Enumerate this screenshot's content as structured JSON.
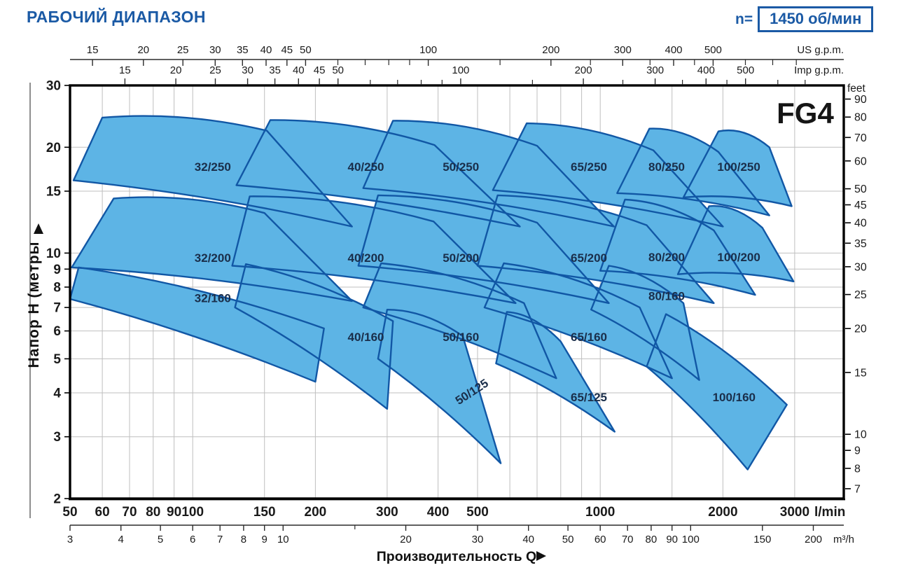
{
  "title": "РАБОЧИЙ ДИАПАЗОН",
  "speed": {
    "prefix": "n=",
    "value": "1450 об/мин"
  },
  "colors": {
    "accent": "#1b5aa5",
    "region_fill": "#5db4e5",
    "region_stroke": "#1157a5",
    "region_label": "#1a2e4a",
    "grid": "#bfbfbf",
    "axis": "#2b2b2b",
    "text": "#1a1a1a",
    "border": "#000000"
  },
  "chart_data": {
    "type": "area",
    "title": "РАБОЧИЙ ДИАПАЗОН",
    "model": "FG4",
    "speed_rpm": 1450,
    "x_title": "Производительность Q",
    "axis_ranges": {
      "q_lmin": [
        50,
        3960
      ],
      "h_m": [
        2,
        30
      ]
    },
    "grid": {
      "x_lmin": [
        60,
        70,
        80,
        90,
        100,
        150,
        200,
        300,
        400,
        500,
        600,
        700,
        800,
        900,
        1000,
        1500,
        2000,
        3000
      ],
      "y_m": [
        3,
        4,
        5,
        6,
        7,
        8,
        9,
        10,
        15,
        20
      ]
    },
    "x_axes": {
      "lmin": {
        "unit": "l/min",
        "ticks": [
          50,
          60,
          70,
          80,
          90,
          100,
          150,
          200,
          300,
          400,
          500,
          1000,
          2000,
          3000
        ]
      },
      "m3h": {
        "unit": "m³/h",
        "lmin_per_unit": 16.6667,
        "minor": [
          15
        ],
        "ticks": [
          3,
          4,
          5,
          6,
          7,
          8,
          9,
          10,
          20,
          30,
          40,
          50,
          60,
          70,
          80,
          90,
          100,
          150,
          200
        ]
      },
      "us_gpm": {
        "unit": "US g.p.m.",
        "lmin_per_unit": 3.785,
        "ticks": [
          15,
          20,
          25,
          30,
          35,
          40,
          45,
          50,
          100,
          200,
          300,
          400,
          500
        ],
        "minor": [
          60,
          70,
          80,
          90,
          150,
          250,
          350,
          450,
          600,
          700,
          800
        ]
      },
      "imp_gpm": {
        "unit": "Imp g.p.m.",
        "lmin_per_unit": 4.546,
        "ticks": [
          15,
          20,
          25,
          30,
          35,
          40,
          45,
          50,
          100,
          200,
          300,
          400,
          500
        ],
        "minor": [
          60,
          70,
          80,
          90,
          150,
          250,
          350,
          450,
          600,
          700
        ]
      }
    },
    "y_axes": {
      "meters": {
        "title": "Напор H (метры",
        "ticks": [
          2,
          3,
          4,
          5,
          6,
          7,
          8,
          9,
          10,
          15,
          20,
          30
        ]
      },
      "feet": {
        "unit": "feet",
        "m_per_unit": 0.3048,
        "ticks": [
          7,
          8,
          9,
          10,
          15,
          20,
          25,
          30,
          35,
          40,
          45,
          50,
          60,
          70,
          80,
          90
        ]
      }
    },
    "regions": [
      {
        "name": "32/250",
        "poly": [
          [
            60,
            24.3
          ],
          [
            152,
            22.3
          ],
          [
            246,
            11.9
          ],
          [
            51,
            16.1
          ]
        ],
        "label_at": [
          112,
          17.6
        ]
      },
      {
        "name": "32/200",
        "poly": [
          [
            64,
            14.3
          ],
          [
            150,
            13.0
          ],
          [
            246,
            7.3
          ],
          [
            50.5,
            9.1
          ]
        ],
        "label_at": [
          112,
          9.7
        ]
      },
      {
        "name": "32/160",
        "poly": [
          [
            52.5,
            9.1
          ],
          [
            210,
            6.1
          ],
          [
            200,
            4.3
          ],
          [
            50,
            7.4
          ]
        ],
        "label_at": [
          112,
          7.45
        ]
      },
      {
        "name": "40/250",
        "poly": [
          [
            155,
            23.9
          ],
          [
            392,
            20.3
          ],
          [
            635,
            11.9
          ],
          [
            128,
            15.6
          ]
        ],
        "label_at": [
          266,
          17.6
        ]
      },
      {
        "name": "40/200",
        "poly": [
          [
            138,
            14.5
          ],
          [
            390,
            12.3
          ],
          [
            620,
            7.2
          ],
          [
            125,
            9.2
          ]
        ],
        "label_at": [
          266,
          9.7
        ]
      },
      {
        "name": "40/160",
        "poly": [
          [
            135,
            9.3
          ],
          [
            310,
            6.4
          ],
          [
            300,
            3.6
          ],
          [
            127,
            7.0
          ]
        ],
        "label_at": [
          266,
          5.77
        ]
      },
      {
        "name": "50/250",
        "poly": [
          [
            310,
            23.8
          ],
          [
            700,
            20.2
          ],
          [
            1080,
            11.9
          ],
          [
            262,
            15.3
          ]
        ],
        "label_at": [
          455,
          17.6
        ]
      },
      {
        "name": "50/200",
        "poly": [
          [
            285,
            14.6
          ],
          [
            700,
            12.2
          ],
          [
            1050,
            7.2
          ],
          [
            255,
            9.2
          ]
        ],
        "label_at": [
          455,
          9.7
        ]
      },
      {
        "name": "50/160",
        "poly": [
          [
            290,
            9.35
          ],
          [
            650,
            7.2
          ],
          [
            780,
            4.4
          ],
          [
            262,
            7.0
          ]
        ],
        "label_at": [
          455,
          5.77
        ]
      },
      {
        "name": "50/125",
        "poly": [
          [
            300,
            6.9
          ],
          [
            460,
            5.8
          ],
          [
            570,
            2.52
          ],
          [
            285,
            5.0
          ]
        ],
        "label_at": [
          490,
          4.05
        ],
        "label_rotation": -33
      },
      {
        "name": "65/250",
        "poly": [
          [
            660,
            23.4
          ],
          [
            1350,
            19.6
          ],
          [
            2000,
            11.9
          ],
          [
            545,
            15.1
          ]
        ],
        "label_at": [
          938,
          17.6
        ]
      },
      {
        "name": "65/200",
        "poly": [
          [
            560,
            14.6
          ],
          [
            1300,
            12.0
          ],
          [
            1900,
            7.2
          ],
          [
            500,
            9.2
          ]
        ],
        "label_at": [
          938,
          9.7
        ]
      },
      {
        "name": "65/160",
        "poly": [
          [
            580,
            9.35
          ],
          [
            1250,
            7.0
          ],
          [
            1500,
            4.4
          ],
          [
            520,
            7.0
          ]
        ],
        "label_at": [
          938,
          5.77
        ]
      },
      {
        "name": "65/125",
        "poly": [
          [
            590,
            6.8
          ],
          [
            800,
            5.6
          ],
          [
            1085,
            3.1
          ],
          [
            555,
            4.85
          ]
        ],
        "label_at": [
          938,
          3.89
        ]
      },
      {
        "name": "80/250",
        "poly": [
          [
            1320,
            22.6
          ],
          [
            1950,
            19.4
          ],
          [
            2600,
            12.8
          ],
          [
            1100,
            14.8
          ]
        ],
        "label_at": [
          1455,
          17.6
        ]
      },
      {
        "name": "80/200",
        "poly": [
          [
            1150,
            14.2
          ],
          [
            1900,
            11.6
          ],
          [
            2400,
            7.6
          ],
          [
            1000,
            8.9
          ]
        ],
        "label_at": [
          1455,
          9.74
        ]
      },
      {
        "name": "80/160",
        "poly": [
          [
            1050,
            9.2
          ],
          [
            1600,
            7.2
          ],
          [
            1750,
            4.35
          ],
          [
            950,
            6.9
          ]
        ],
        "label_at": [
          1455,
          7.55
        ]
      },
      {
        "name": "100/250",
        "poly": [
          [
            1950,
            22.2
          ],
          [
            2600,
            20.0
          ],
          [
            2950,
            13.6
          ],
          [
            1600,
            14.4
          ]
        ],
        "label_at": [
          2188,
          17.6
        ]
      },
      {
        "name": "100/200",
        "poly": [
          [
            1850,
            13.6
          ],
          [
            2500,
            11.8
          ],
          [
            2980,
            8.3
          ],
          [
            1550,
            8.7
          ]
        ],
        "label_at": [
          2188,
          9.74
        ]
      },
      {
        "name": "100/160",
        "poly": [
          [
            1450,
            6.7
          ],
          [
            2870,
            3.7
          ],
          [
            2300,
            2.42
          ],
          [
            1300,
            4.75
          ]
        ],
        "label_at": [
          2130,
          3.89
        ]
      }
    ]
  }
}
